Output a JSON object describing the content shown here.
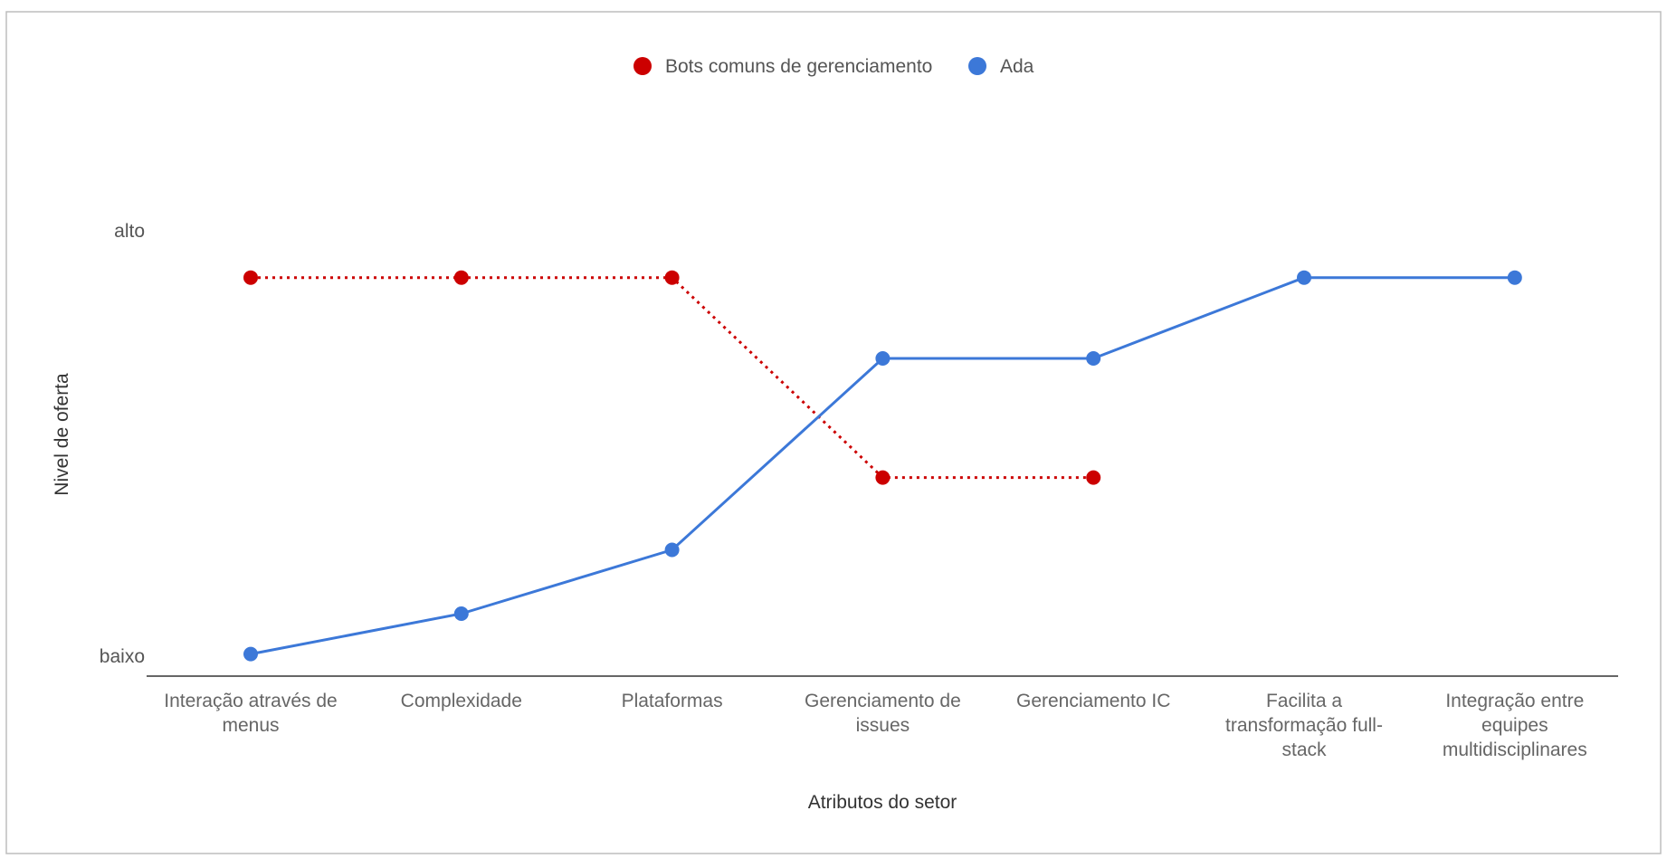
{
  "chart_data": {
    "type": "line",
    "xlabel": "Atributos do setor",
    "ylabel": "Nivel de oferta",
    "y_ticks": [
      {
        "label": "baixo",
        "value": 0
      },
      {
        "label": "alto",
        "value": 1
      }
    ],
    "ylim": [
      0,
      1
    ],
    "legend_position": "top",
    "grid": false,
    "categories": [
      [
        "Interação através de",
        "menus"
      ],
      [
        "Complexidade"
      ],
      [
        "Plataformas"
      ],
      [
        "Gerenciamento de",
        "issues"
      ],
      [
        "Gerenciamento IC"
      ],
      [
        "Facilita a",
        "transformação full-",
        "stack"
      ],
      [
        "Integração entre",
        "equipes",
        "multidisciplinares"
      ]
    ],
    "series": [
      {
        "name": "Bots comuns de gerenciamento",
        "color": "#cc0000",
        "line_style": "dotted",
        "values": [
          0.89,
          0.89,
          0.89,
          0.42,
          0.42,
          null,
          null
        ]
      },
      {
        "name": "Ada",
        "color": "#3c78d8",
        "line_style": "solid",
        "values": [
          0.005,
          0.1,
          0.25,
          0.7,
          0.7,
          0.89,
          0.89
        ]
      }
    ]
  }
}
